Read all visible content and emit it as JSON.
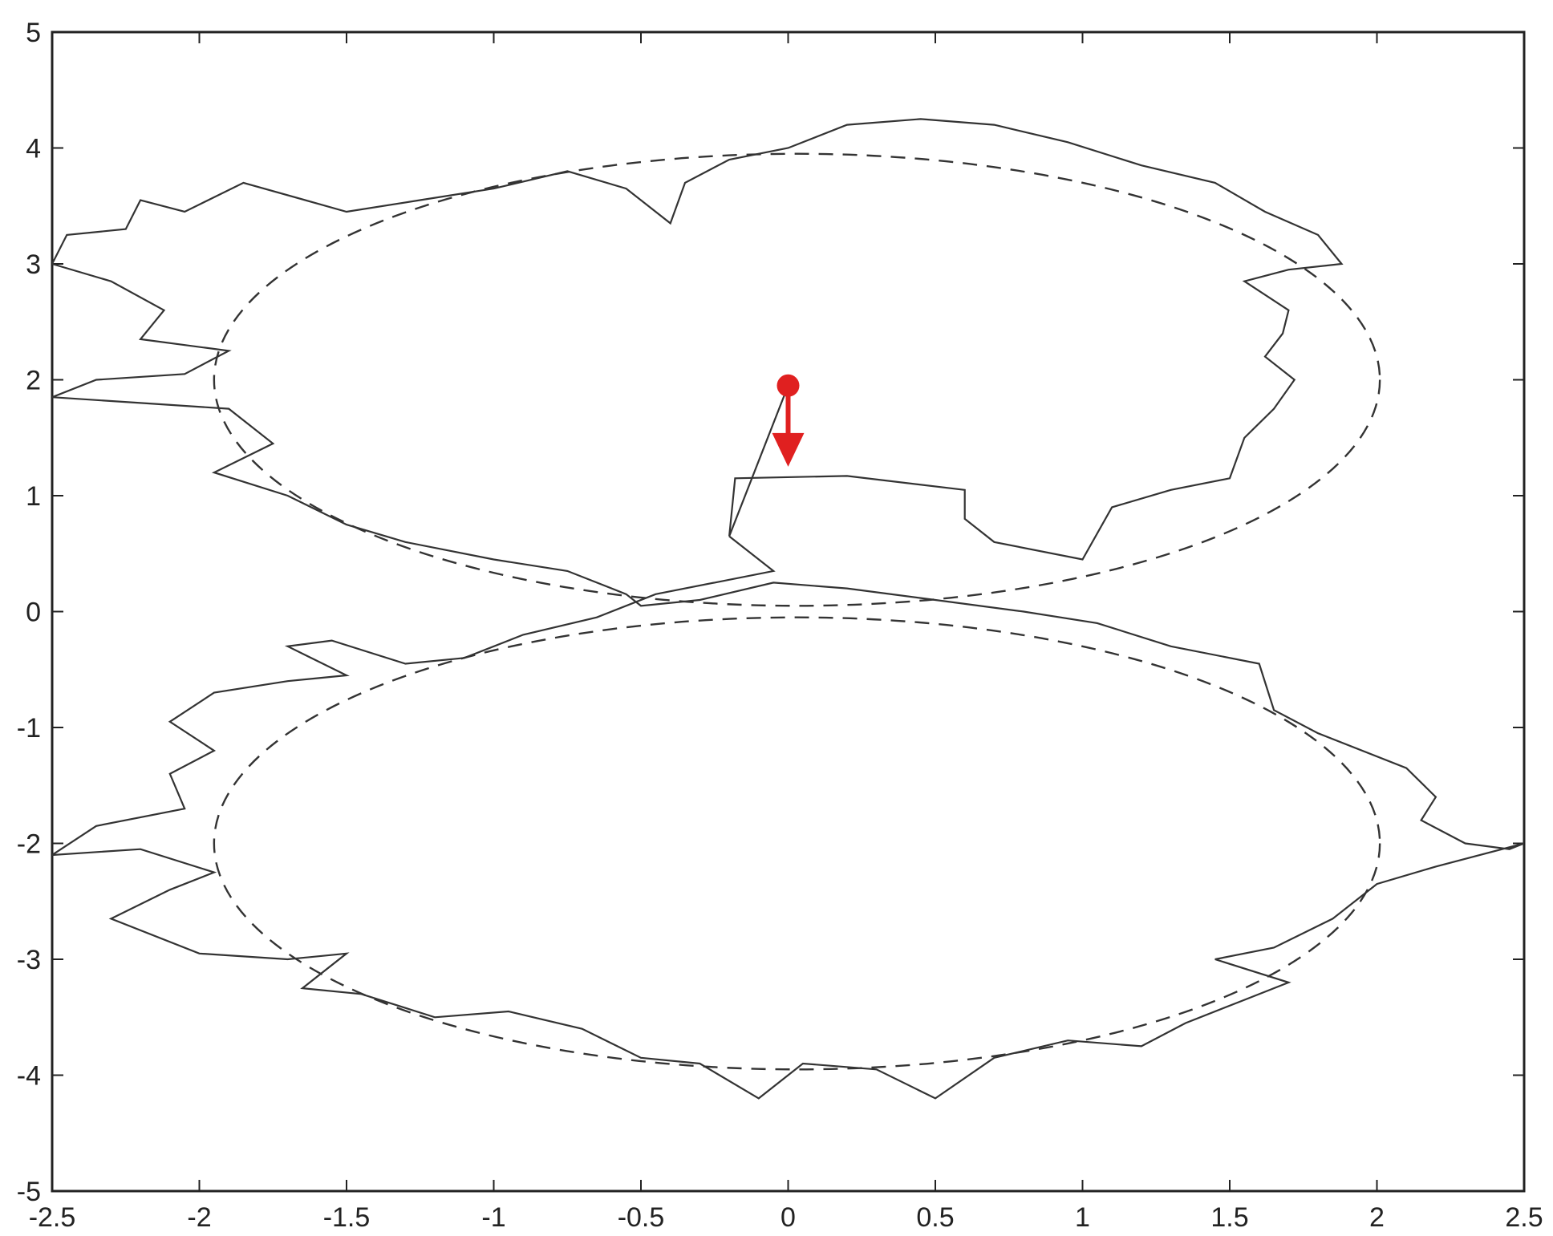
{
  "chart_data": {
    "type": "line",
    "title": "",
    "xlabel": "",
    "ylabel": "",
    "xlim": [
      -2.5,
      2.5
    ],
    "ylim": [
      -5,
      5
    ],
    "grid": false,
    "legend": "none",
    "x_ticks": [
      {
        "value": -2.5,
        "label": "-2.5"
      },
      {
        "value": -2,
        "label": "-2"
      },
      {
        "value": -1.5,
        "label": "-1.5"
      },
      {
        "value": -1,
        "label": "-1"
      },
      {
        "value": -0.5,
        "label": "-0.5"
      },
      {
        "value": 0,
        "label": "0"
      },
      {
        "value": 0.5,
        "label": "0.5"
      },
      {
        "value": 1,
        "label": "1"
      },
      {
        "value": 1.5,
        "label": "1.5"
      },
      {
        "value": 2,
        "label": "2"
      },
      {
        "value": 2.5,
        "label": "2.5"
      }
    ],
    "y_ticks": [
      {
        "value": -5,
        "label": "-5"
      },
      {
        "value": -4,
        "label": "-4"
      },
      {
        "value": -3,
        "label": "-3"
      },
      {
        "value": -2,
        "label": "-2"
      },
      {
        "value": -1,
        "label": "-1"
      },
      {
        "value": 0,
        "label": "0"
      },
      {
        "value": 1,
        "label": "1"
      },
      {
        "value": 2,
        "label": "2"
      },
      {
        "value": 3,
        "label": "3"
      },
      {
        "value": 4,
        "label": "4"
      },
      {
        "value": 5,
        "label": "5"
      }
    ],
    "series": [
      {
        "style": "dashed",
        "color": "#333333",
        "shape": "two stacked ellipses (figure-eight)",
        "ellipses": [
          {
            "cx": 0.03,
            "cy": 2.0,
            "rx": 1.98,
            "ry": 1.95
          },
          {
            "cx": 0.03,
            "cy": -2.0,
            "rx": 1.98,
            "ry": 1.95
          }
        ]
      },
      {
        "style": "solid",
        "color": "#333333",
        "shape": "noisy trajectory around figure-eight",
        "points": [
          [
            -0.2,
            0.65
          ],
          [
            -0.18,
            1.15
          ],
          [
            0.2,
            1.17
          ],
          [
            0.6,
            1.05
          ],
          [
            0.6,
            0.8
          ],
          [
            0.7,
            0.6
          ],
          [
            1.0,
            0.45
          ],
          [
            1.1,
            0.9
          ],
          [
            1.3,
            1.05
          ],
          [
            1.5,
            1.15
          ],
          [
            1.55,
            1.5
          ],
          [
            1.65,
            1.75
          ],
          [
            1.72,
            2.0
          ],
          [
            1.62,
            2.2
          ],
          [
            1.68,
            2.4
          ],
          [
            1.7,
            2.6
          ],
          [
            1.55,
            2.85
          ],
          [
            1.7,
            2.95
          ],
          [
            1.88,
            3.0
          ],
          [
            1.8,
            3.25
          ],
          [
            1.62,
            3.45
          ],
          [
            1.45,
            3.7
          ],
          [
            1.2,
            3.85
          ],
          [
            0.95,
            4.05
          ],
          [
            0.7,
            4.2
          ],
          [
            0.45,
            4.25
          ],
          [
            0.2,
            4.2
          ],
          [
            -0.0,
            4.0
          ],
          [
            -0.2,
            3.9
          ],
          [
            -0.35,
            3.7
          ],
          [
            -0.4,
            3.35
          ],
          [
            -0.55,
            3.65
          ],
          [
            -0.75,
            3.8
          ],
          [
            -1.0,
            3.65
          ],
          [
            -1.25,
            3.55
          ],
          [
            -1.5,
            3.45
          ],
          [
            -1.85,
            3.7
          ],
          [
            -2.05,
            3.45
          ],
          [
            -2.2,
            3.55
          ],
          [
            -2.25,
            3.3
          ],
          [
            -2.45,
            3.25
          ],
          [
            -2.5,
            3.0
          ],
          [
            -2.3,
            2.85
          ],
          [
            -2.12,
            2.6
          ],
          [
            -2.2,
            2.35
          ],
          [
            -1.9,
            2.25
          ],
          [
            -2.05,
            2.05
          ],
          [
            -2.35,
            2.0
          ],
          [
            -2.5,
            1.85
          ],
          [
            -2.2,
            1.8
          ],
          [
            -1.9,
            1.75
          ],
          [
            -1.75,
            1.45
          ],
          [
            -1.95,
            1.2
          ],
          [
            -1.7,
            1.0
          ],
          [
            -1.5,
            0.75
          ],
          [
            -1.3,
            0.6
          ],
          [
            -1.0,
            0.45
          ],
          [
            -0.75,
            0.35
          ],
          [
            -0.55,
            0.15
          ],
          [
            -0.5,
            0.05
          ],
          [
            -0.3,
            0.1
          ],
          [
            -0.05,
            0.25
          ],
          [
            0.2,
            0.2
          ],
          [
            0.5,
            0.1
          ],
          [
            0.8,
            0.0
          ],
          [
            1.05,
            -0.1
          ],
          [
            1.3,
            -0.3
          ],
          [
            1.6,
            -0.45
          ],
          [
            1.65,
            -0.85
          ],
          [
            1.8,
            -1.05
          ],
          [
            2.1,
            -1.35
          ],
          [
            2.2,
            -1.6
          ],
          [
            2.15,
            -1.8
          ],
          [
            2.3,
            -2.0
          ],
          [
            2.45,
            -2.05
          ],
          [
            2.5,
            -2.0
          ],
          [
            2.2,
            -2.2
          ],
          [
            2.0,
            -2.35
          ],
          [
            1.85,
            -2.65
          ],
          [
            1.65,
            -2.9
          ],
          [
            1.45,
            -3.0
          ],
          [
            1.7,
            -3.2
          ],
          [
            1.55,
            -3.35
          ],
          [
            1.35,
            -3.55
          ],
          [
            1.2,
            -3.75
          ],
          [
            0.95,
            -3.7
          ],
          [
            0.7,
            -3.85
          ],
          [
            0.5,
            -4.2
          ],
          [
            0.3,
            -3.95
          ],
          [
            0.05,
            -3.9
          ],
          [
            -0.1,
            -4.2
          ],
          [
            -0.3,
            -3.9
          ],
          [
            -0.5,
            -3.85
          ],
          [
            -0.7,
            -3.6
          ],
          [
            -0.95,
            -3.45
          ],
          [
            -1.2,
            -3.5
          ],
          [
            -1.45,
            -3.3
          ],
          [
            -1.65,
            -3.25
          ],
          [
            -1.5,
            -2.95
          ],
          [
            -1.7,
            -3.0
          ],
          [
            -2.0,
            -2.95
          ],
          [
            -2.3,
            -2.65
          ],
          [
            -2.1,
            -2.4
          ],
          [
            -1.95,
            -2.25
          ],
          [
            -2.2,
            -2.05
          ],
          [
            -2.5,
            -2.1
          ],
          [
            -2.35,
            -1.85
          ],
          [
            -2.05,
            -1.7
          ],
          [
            -2.1,
            -1.4
          ],
          [
            -1.95,
            -1.2
          ],
          [
            -2.1,
            -0.95
          ],
          [
            -1.95,
            -0.7
          ],
          [
            -1.7,
            -0.6
          ],
          [
            -1.5,
            -0.55
          ],
          [
            -1.7,
            -0.3
          ],
          [
            -1.55,
            -0.25
          ],
          [
            -1.3,
            -0.45
          ],
          [
            -1.1,
            -0.4
          ],
          [
            -0.9,
            -0.2
          ],
          [
            -0.65,
            -0.05
          ],
          [
            -0.45,
            0.15
          ],
          [
            -0.25,
            0.25
          ],
          [
            -0.05,
            0.35
          ],
          [
            -0.2,
            0.65
          ]
        ]
      }
    ],
    "annotations": [
      {
        "type": "marker",
        "shape": "circle",
        "color": "#e02020",
        "x": 0.0,
        "y": 1.95
      },
      {
        "type": "arrow",
        "direction": "down",
        "color": "#e02020",
        "from": [
          0.0,
          1.95
        ],
        "to": [
          0.0,
          1.25
        ]
      },
      {
        "type": "line",
        "color": "#333333",
        "from": [
          0.0,
          1.95
        ],
        "to": [
          -0.2,
          0.65
        ]
      }
    ]
  }
}
